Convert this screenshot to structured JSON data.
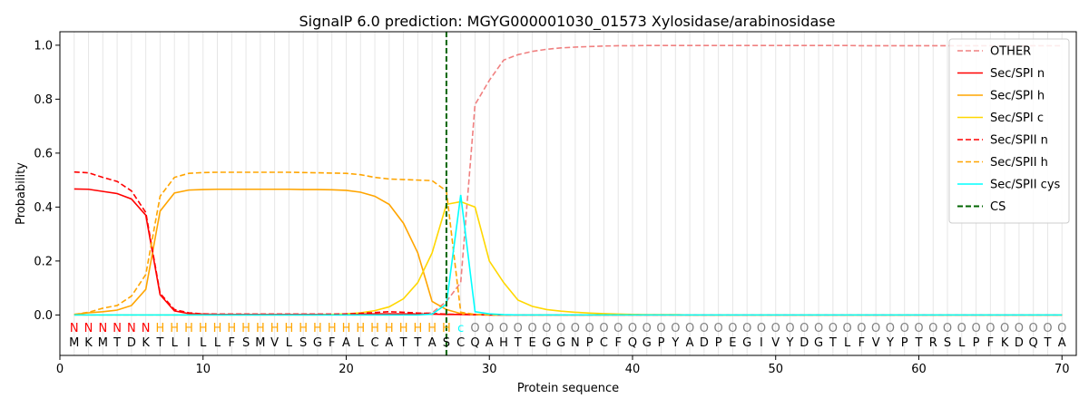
{
  "chart_data": {
    "type": "line",
    "title": "SignalP 6.0 prediction: MGYG000001030_01573 Xylosidase/arabinosidase",
    "xlabel": "Protein sequence",
    "ylabel": "Probability",
    "xlim": [
      0,
      71
    ],
    "ylim": [
      -0.15,
      1.05
    ],
    "xticks": [
      0,
      10,
      20,
      30,
      40,
      50,
      60,
      70
    ],
    "yticks": [
      0.0,
      0.2,
      0.4,
      0.6,
      0.8,
      1.0
    ],
    "ytick_labels": [
      "0.0",
      "0.2",
      "0.4",
      "0.6",
      "0.8",
      "1.0"
    ],
    "grid": "vertical lines at each residue",
    "legend_position": "top-right",
    "cleavage_site": 27,
    "sequence": [
      "M",
      "K",
      "M",
      "T",
      "D",
      "K",
      "T",
      "L",
      "I",
      "L",
      "L",
      "F",
      "S",
      "M",
      "V",
      "L",
      "S",
      "G",
      "F",
      "A",
      "L",
      "C",
      "A",
      "T",
      "T",
      "A",
      "S",
      "C",
      "Q",
      "A",
      "H",
      "T",
      "E",
      "G",
      "G",
      "N",
      "P",
      "C",
      "F",
      "Q",
      "G",
      "P",
      "Y",
      "A",
      "D",
      "P",
      "E",
      "G",
      "I",
      "V",
      "Y",
      "D",
      "G",
      "T",
      "L",
      "F",
      "V",
      "Y",
      "P",
      "T",
      "R",
      "S",
      "L",
      "P",
      "F",
      "K",
      "D",
      "Q",
      "T",
      "A"
    ],
    "region_labels": [
      "N",
      "N",
      "N",
      "N",
      "N",
      "N",
      "H",
      "H",
      "H",
      "H",
      "H",
      "H",
      "H",
      "H",
      "H",
      "H",
      "H",
      "H",
      "H",
      "H",
      "H",
      "H",
      "H",
      "H",
      "H",
      "H",
      "H",
      "c",
      "O",
      "O",
      "O",
      "O",
      "O",
      "O",
      "O",
      "O",
      "O",
      "O",
      "O",
      "O",
      "O",
      "O",
      "O",
      "O",
      "O",
      "O",
      "O",
      "O",
      "O",
      "O",
      "O",
      "O",
      "O",
      "O",
      "O",
      "O",
      "O",
      "O",
      "O",
      "O",
      "O",
      "O",
      "O",
      "O",
      "O",
      "O",
      "O",
      "O",
      "O",
      "O"
    ],
    "region_colors": {
      "N": "#ff0000",
      "H": "#ffa500",
      "c": "#00ffff",
      "O": "#808080"
    },
    "series": [
      {
        "name": "OTHER",
        "color": "#f08080",
        "dash": "dashed",
        "values": [
          0,
          0,
          0,
          0,
          0,
          0,
          0,
          0,
          0,
          0,
          0,
          0,
          0,
          0,
          0,
          0,
          0,
          0,
          0,
          0,
          0,
          0,
          0,
          0.003,
          0.006,
          0.008,
          0.05,
          0.12,
          0.78,
          0.87,
          0.945,
          0.965,
          0.977,
          0.985,
          0.99,
          0.993,
          0.995,
          0.997,
          0.998,
          0.998,
          0.999,
          0.999,
          0.999,
          0.999,
          0.999,
          0.999,
          0.999,
          0.999,
          0.999,
          0.999,
          0.999,
          0.999,
          0.999,
          0.999,
          0.999,
          0.998,
          0.998,
          0.998,
          0.998,
          0.998,
          0.998,
          0.998,
          0.998,
          0.998,
          0.998,
          0.998,
          0.998,
          0.998,
          0.998,
          0.998
        ]
      },
      {
        "name": "Sec/SPI n",
        "color": "#ff0000",
        "dash": "solid",
        "values": [
          0.467,
          0.466,
          0.458,
          0.45,
          0.43,
          0.37,
          0.075,
          0.015,
          0.005,
          0.003,
          0.002,
          0.002,
          0.002,
          0.002,
          0.002,
          0.002,
          0.002,
          0.002,
          0.002,
          0.002,
          0.003,
          0.004,
          0.004,
          0.004,
          0.003,
          0.003,
          0.002,
          0.002,
          0.001,
          0,
          0,
          0,
          0,
          0,
          0,
          0,
          0,
          0,
          0,
          0,
          0,
          0,
          0,
          0,
          0,
          0,
          0,
          0,
          0,
          0,
          0,
          0,
          0,
          0,
          0,
          0,
          0,
          0,
          0,
          0,
          0,
          0,
          0,
          0,
          0,
          0,
          0,
          0,
          0,
          0
        ]
      },
      {
        "name": "Sec/SPI h",
        "color": "#ffa500",
        "dash": "solid",
        "values": [
          0.002,
          0.008,
          0.012,
          0.018,
          0.035,
          0.095,
          0.385,
          0.452,
          0.463,
          0.465,
          0.466,
          0.466,
          0.466,
          0.466,
          0.466,
          0.466,
          0.465,
          0.465,
          0.464,
          0.462,
          0.455,
          0.44,
          0.41,
          0.34,
          0.23,
          0.05,
          0.02,
          0.005,
          0.002,
          0,
          0,
          0,
          0,
          0,
          0,
          0,
          0,
          0,
          0,
          0,
          0,
          0,
          0,
          0,
          0,
          0,
          0,
          0,
          0,
          0,
          0,
          0,
          0,
          0,
          0,
          0,
          0,
          0,
          0,
          0,
          0,
          0,
          0,
          0,
          0,
          0,
          0,
          0,
          0,
          0
        ]
      },
      {
        "name": "Sec/SPI c",
        "color": "#ffd700",
        "dash": "solid",
        "values": [
          0,
          0,
          0,
          0,
          0,
          0,
          0,
          0,
          0,
          0,
          0,
          0,
          0,
          0,
          0,
          0,
          0,
          0,
          0.002,
          0.004,
          0.008,
          0.016,
          0.03,
          0.06,
          0.12,
          0.23,
          0.41,
          0.42,
          0.4,
          0.2,
          0.12,
          0.055,
          0.032,
          0.02,
          0.014,
          0.01,
          0.007,
          0.005,
          0.003,
          0.002,
          0.001,
          0.001,
          0.001,
          0,
          0,
          0,
          0,
          0,
          0,
          0,
          0,
          0,
          0,
          0,
          0,
          0,
          0,
          0,
          0,
          0,
          0,
          0,
          0,
          0,
          0,
          0,
          0,
          0,
          0,
          0
        ]
      },
      {
        "name": "Sec/SPII n",
        "color": "#ff0000",
        "dash": "dashed",
        "values": [
          0.53,
          0.527,
          0.51,
          0.495,
          0.46,
          0.38,
          0.08,
          0.02,
          0.008,
          0.004,
          0.003,
          0.003,
          0.003,
          0.003,
          0.003,
          0.003,
          0.003,
          0.003,
          0.003,
          0.004,
          0.006,
          0.009,
          0.012,
          0.01,
          0.007,
          0.005,
          0.003,
          0.002,
          0.001,
          0,
          0,
          0,
          0,
          0,
          0,
          0,
          0,
          0,
          0,
          0,
          0,
          0,
          0,
          0,
          0,
          0,
          0,
          0,
          0,
          0,
          0,
          0,
          0,
          0,
          0,
          0,
          0,
          0,
          0,
          0,
          0,
          0,
          0,
          0,
          0,
          0,
          0,
          0,
          0,
          0
        ]
      },
      {
        "name": "Sec/SPII h",
        "color": "#ffa500",
        "dash": "dashed",
        "values": [
          0.002,
          0.01,
          0.025,
          0.035,
          0.07,
          0.15,
          0.44,
          0.51,
          0.525,
          0.528,
          0.529,
          0.529,
          0.529,
          0.529,
          0.529,
          0.529,
          0.528,
          0.527,
          0.526,
          0.525,
          0.52,
          0.51,
          0.504,
          0.502,
          0.5,
          0.498,
          0.46,
          0.01,
          0.002,
          0,
          0,
          0,
          0,
          0,
          0,
          0,
          0,
          0,
          0,
          0,
          0,
          0,
          0,
          0,
          0,
          0,
          0,
          0,
          0,
          0,
          0,
          0,
          0,
          0,
          0,
          0,
          0,
          0,
          0,
          0,
          0,
          0,
          0,
          0,
          0,
          0,
          0,
          0,
          0,
          0
        ]
      },
      {
        "name": "Sec/SPII cys",
        "color": "#00ffff",
        "dash": "solid",
        "values": [
          0,
          0,
          0,
          0,
          0,
          0,
          0,
          0,
          0,
          0,
          0,
          0,
          0,
          0,
          0,
          0,
          0,
          0,
          0,
          0,
          0,
          0,
          0,
          0,
          0,
          0.003,
          0.04,
          0.445,
          0.012,
          0.004,
          0.001,
          0,
          0,
          0,
          0,
          0,
          0,
          0,
          0,
          0,
          0,
          0,
          0,
          0,
          0,
          0,
          0,
          0,
          0,
          0,
          0,
          0,
          0,
          0,
          0,
          0,
          0,
          0,
          0,
          0,
          0,
          0,
          0,
          0,
          0,
          0,
          0,
          0,
          0,
          0
        ]
      },
      {
        "name": "CS",
        "color": "#006400",
        "dash": "dashed",
        "values": []
      }
    ]
  }
}
